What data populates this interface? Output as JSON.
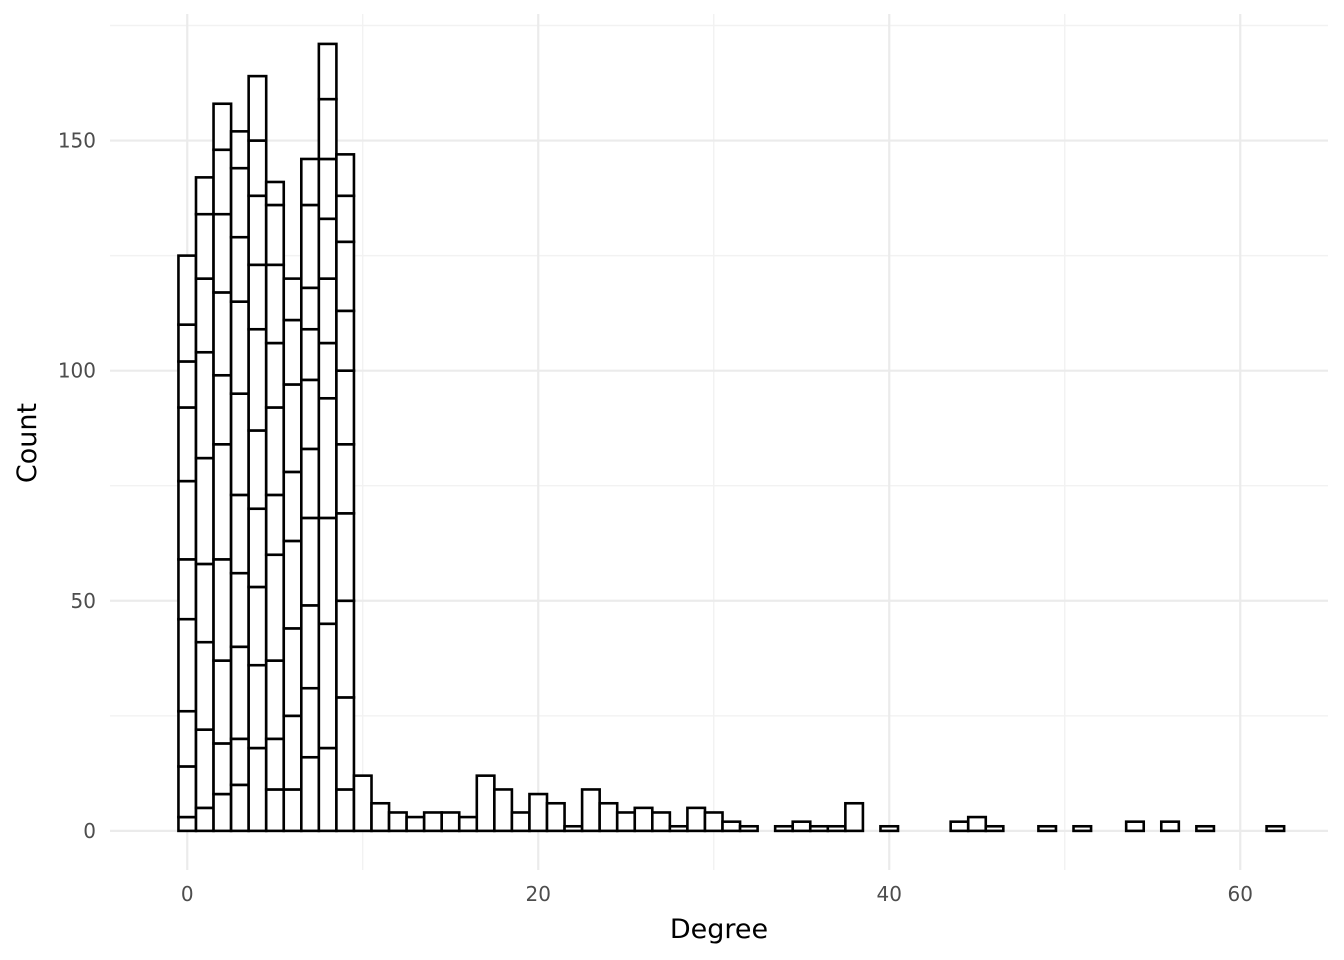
{
  "chart_data": {
    "type": "bar",
    "title": "",
    "xlabel": "Degree",
    "ylabel": "Count",
    "xlim": [
      -4.4,
      65.0
    ],
    "ylim": [
      -8.5,
      177.5
    ],
    "x_ticks": [
      0,
      20,
      40,
      60
    ],
    "x_tick_labels": [
      "0",
      "20",
      "40",
      "60"
    ],
    "y_ticks": [
      0,
      50,
      100,
      150
    ],
    "y_tick_labels": [
      "0",
      "50",
      "100",
      "150"
    ],
    "grid": true,
    "bin_width": 1,
    "stacked_bars": [
      {
        "x": 0,
        "segments": [
          3,
          11,
          12,
          20,
          13,
          17,
          16,
          10,
          8,
          15
        ]
      },
      {
        "x": 1,
        "segments": [
          5,
          17,
          19,
          17,
          23,
          23,
          16,
          14,
          8
        ]
      },
      {
        "x": 2,
        "segments": [
          8,
          11,
          18,
          22,
          25,
          15,
          18,
          17,
          14,
          10
        ]
      },
      {
        "x": 3,
        "segments": [
          10,
          10,
          20,
          16,
          17,
          22,
          20,
          14,
          15,
          8
        ]
      },
      {
        "x": 4,
        "segments": [
          18,
          18,
          17,
          17,
          17,
          22,
          14,
          15,
          12,
          14
        ]
      },
      {
        "x": 5,
        "segments": [
          9,
          11,
          17,
          23,
          13,
          19,
          14,
          17,
          13,
          5
        ]
      },
      {
        "x": 6,
        "segments": [
          9,
          16,
          19,
          19,
          15,
          19,
          14,
          9
        ]
      },
      {
        "x": 7,
        "segments": [
          16,
          15,
          18,
          19,
          15,
          15,
          11,
          9,
          18,
          10
        ]
      },
      {
        "x": 8,
        "segments": [
          18,
          27,
          23,
          26,
          12,
          14,
          13,
          13,
          13,
          12
        ]
      },
      {
        "x": 9,
        "segments": [
          9,
          20,
          21,
          19,
          15,
          16,
          13,
          15,
          10,
          9
        ]
      }
    ],
    "x": [
      10,
      11,
      12,
      13,
      14,
      15,
      16,
      17,
      18,
      19,
      20,
      21,
      22,
      23,
      24,
      25,
      26,
      27,
      28,
      29,
      30,
      31,
      32,
      34,
      35,
      36,
      37,
      38,
      40,
      44,
      45,
      46,
      49,
      51,
      54,
      56,
      58,
      62
    ],
    "values": [
      12,
      6,
      4,
      3,
      4,
      4,
      3,
      12,
      9,
      4,
      8,
      6,
      1,
      9,
      6,
      4,
      5,
      4,
      1,
      5,
      4,
      2,
      1,
      1,
      2,
      1,
      1,
      6,
      1,
      2,
      3,
      1,
      1,
      1,
      2,
      2,
      1,
      1
    ]
  }
}
